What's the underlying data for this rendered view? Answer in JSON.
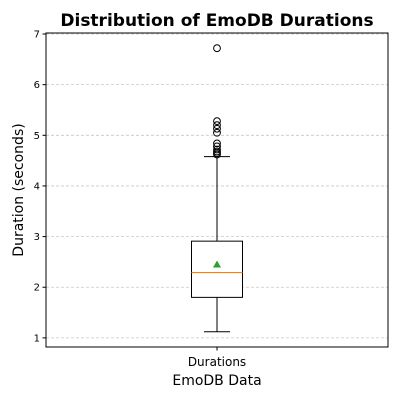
{
  "chart_data": {
    "type": "box",
    "title": "Distribution of EmoDB Durations",
    "xlabel": "EmoDB Data",
    "ylabel": "Duration (seconds)",
    "ylim": [
      0.82,
      7.02
    ],
    "yticks": [
      1,
      2,
      3,
      4,
      5,
      6,
      7
    ],
    "grid": "y-dashed",
    "categories": [
      "Durations"
    ],
    "box": {
      "whisker_low": 1.12,
      "q1": 1.8,
      "median": 2.29,
      "mean": 2.45,
      "q3": 2.91,
      "whisker_high": 4.58,
      "outliers": [
        4.62,
        4.65,
        4.68,
        4.72,
        4.78,
        4.84,
        5.05,
        5.13,
        5.2,
        5.28,
        6.72
      ]
    },
    "colors": {
      "median": "#ff7f0e",
      "mean_marker": "#2ca02c",
      "box": "#000000",
      "grid": "#c8c8c8"
    }
  }
}
